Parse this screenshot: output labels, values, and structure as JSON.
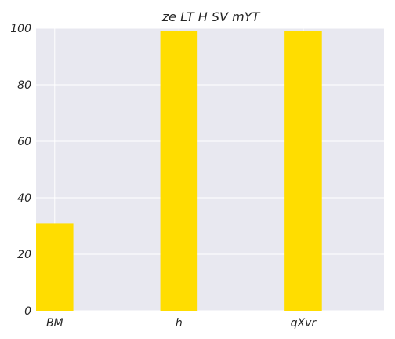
{
  "chart_data": {
    "type": "bar",
    "title": "ze LT H SV mYT",
    "xlabel": "",
    "ylabel": "",
    "categories": [
      "BM",
      "h",
      "qXvr"
    ],
    "values": [
      31,
      99,
      99
    ],
    "ylim": [
      0,
      100
    ],
    "yticks": [
      "0",
      "20",
      "40",
      "60",
      "80",
      "100"
    ],
    "grid": true,
    "bar_color": "#FFDD00",
    "plot_background": "#E8E8F0",
    "grid_color": "#FFFFFF"
  }
}
